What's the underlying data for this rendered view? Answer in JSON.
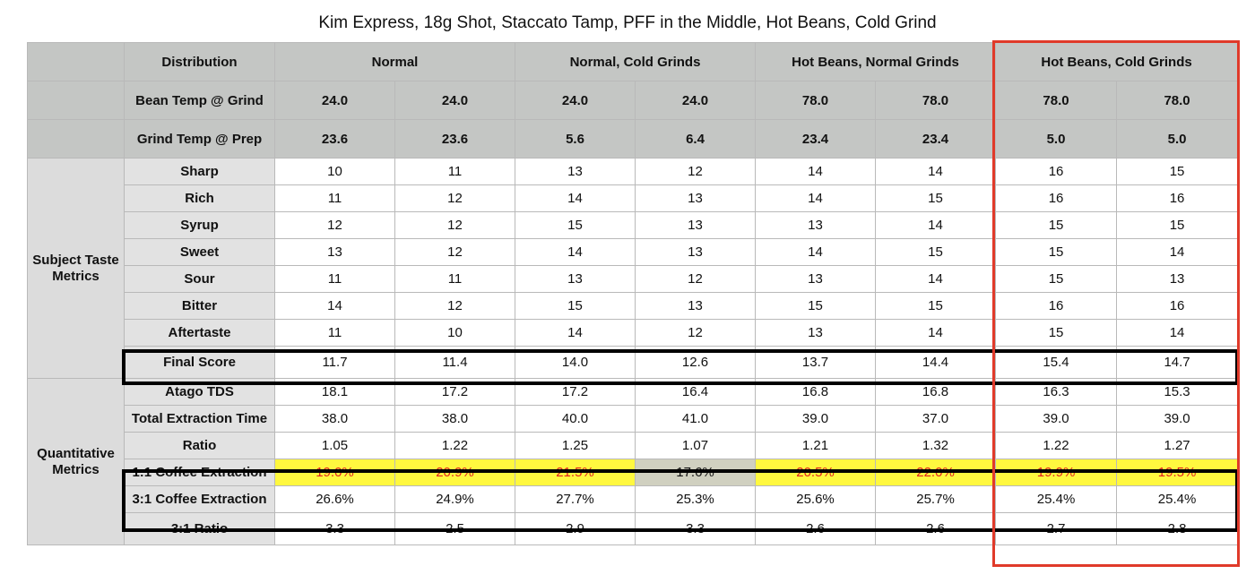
{
  "title": "Kim Express, 18g Shot, Staccato Tamp, PFF in the Middle, Hot Beans, Cold Grind",
  "header": {
    "distribution_label": "Distribution",
    "groups": [
      "Normal",
      "Normal, Cold Grinds",
      "Hot Beans, Normal Grinds",
      "Hot Beans, Cold Grinds"
    ],
    "bean_temp_label": "Bean Temp @ Grind",
    "bean_temp": [
      "24.0",
      "24.0",
      "24.0",
      "24.0",
      "78.0",
      "78.0",
      "78.0",
      "78.0"
    ],
    "grind_temp_label": "Grind Temp @ Prep",
    "grind_temp": [
      "23.6",
      "23.6",
      "5.6",
      "6.4",
      "23.4",
      "23.4",
      "5.0",
      "5.0"
    ]
  },
  "taste": {
    "group_label": "Subject Taste Metrics",
    "rows": [
      {
        "label": "Sharp",
        "values": [
          "10",
          "11",
          "13",
          "12",
          "14",
          "14",
          "16",
          "15"
        ]
      },
      {
        "label": "Rich",
        "values": [
          "11",
          "12",
          "14",
          "13",
          "14",
          "15",
          "16",
          "16"
        ]
      },
      {
        "label": "Syrup",
        "values": [
          "12",
          "12",
          "15",
          "13",
          "13",
          "14",
          "15",
          "15"
        ]
      },
      {
        "label": "Sweet",
        "values": [
          "13",
          "12",
          "14",
          "13",
          "14",
          "15",
          "15",
          "14"
        ]
      },
      {
        "label": "Sour",
        "values": [
          "11",
          "11",
          "13",
          "12",
          "13",
          "14",
          "15",
          "13"
        ]
      },
      {
        "label": "Bitter",
        "values": [
          "14",
          "12",
          "15",
          "13",
          "15",
          "15",
          "16",
          "16"
        ]
      },
      {
        "label": "Aftertaste",
        "values": [
          "11",
          "10",
          "14",
          "12",
          "13",
          "14",
          "15",
          "14"
        ]
      }
    ],
    "final": {
      "label": "Final Score",
      "values": [
        "11.7",
        "11.4",
        "14.0",
        "12.6",
        "13.7",
        "14.4",
        "15.4",
        "14.7"
      ]
    }
  },
  "quant": {
    "group_label": "Quantitative Metrics",
    "rows": [
      {
        "label": "Atago TDS",
        "values": [
          "18.1",
          "17.2",
          "17.2",
          "16.4",
          "16.8",
          "16.8",
          "16.3",
          "15.3"
        ]
      },
      {
        "label": "Total Extraction Time",
        "values": [
          "38.0",
          "38.0",
          "40.0",
          "41.0",
          "39.0",
          "37.0",
          "39.0",
          "39.0"
        ]
      },
      {
        "label": "Ratio",
        "values": [
          "1.05",
          "1.22",
          "1.25",
          "1.07",
          "1.21",
          "1.32",
          "1.22",
          "1.27"
        ]
      },
      {
        "label": "1:1 Coffee Extraction",
        "values": [
          "19.0%",
          "20.9%",
          "21.5%",
          "17.6%",
          "20.5%",
          "22.0%",
          "19.9%",
          "19.5%"
        ]
      },
      {
        "label": "3:1 Coffee Extraction",
        "values": [
          "26.6%",
          "24.9%",
          "27.7%",
          "25.3%",
          "25.6%",
          "25.7%",
          "25.4%",
          "25.4%"
        ]
      },
      {
        "label": "3:1 Ratio",
        "values": [
          "3.3",
          "2.5",
          "2.9",
          "3.3",
          "2.6",
          "2.6",
          "2.7",
          "2.8"
        ]
      }
    ]
  },
  "colors": {
    "header_bg": "#c4c6c4",
    "highlight_bg": "#fff83f",
    "highlight_text": "#e02020",
    "red_box": "#e03a2a"
  }
}
